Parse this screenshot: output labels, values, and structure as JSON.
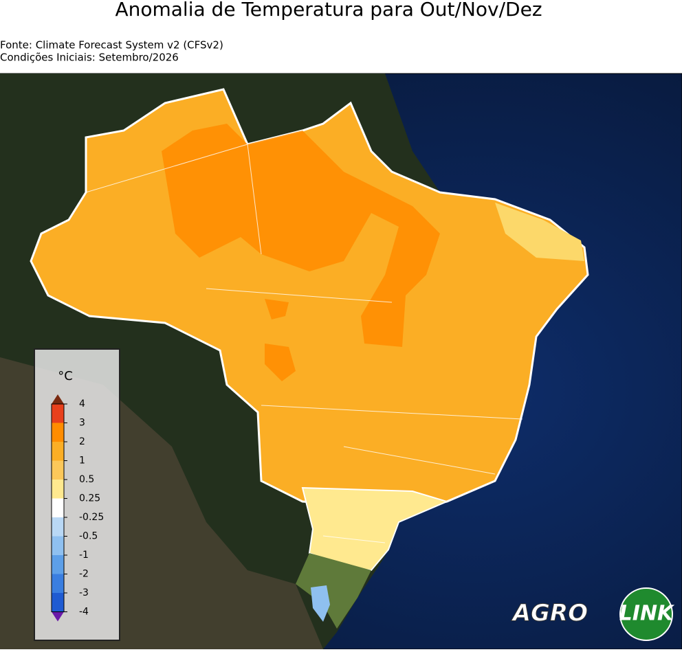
{
  "header": {
    "title": "Anomalia de Temperatura para Out/Nov/Dez",
    "source": "Fonte: Climate Forecast System v2 (CFSv2)",
    "initial_conditions": "Condições Iniciais: Setembro/2026"
  },
  "legend": {
    "unit": "°C",
    "ticks": [
      4,
      3,
      2,
      1,
      0.5,
      0.25,
      -0.25,
      -0.5,
      -1,
      -2,
      -3,
      -4
    ],
    "colors": [
      "#e8401c",
      "#ff8c00",
      "#fbae25",
      "#fcc85a",
      "#ffe98f",
      "#ffffff",
      "#b9d8f5",
      "#8fc0f0",
      "#5d9fe8",
      "#3a7ee0",
      "#1f5bd2"
    ],
    "over_color": "#7a2a10",
    "under_color": "#6a1aa8"
  },
  "logo": {
    "left": "AGRO",
    "right": "LINK"
  }
}
